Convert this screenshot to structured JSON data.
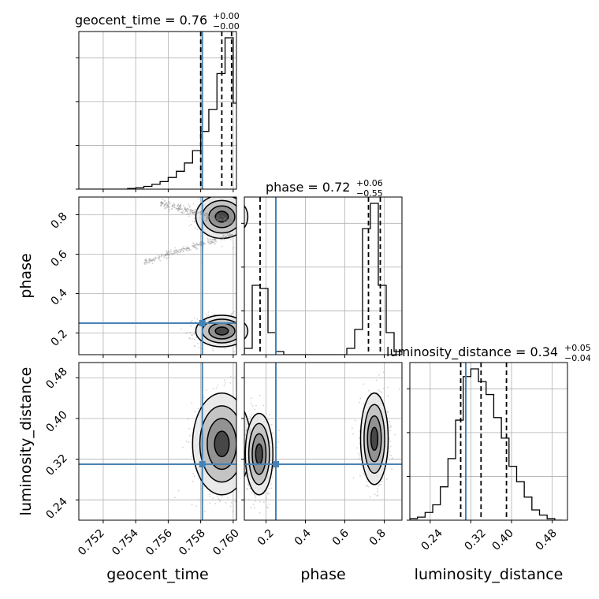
{
  "parameters": [
    "geocent_time",
    "phase",
    "luminosity_distance"
  ],
  "titles": [
    {
      "name": "geocent_time",
      "value": "0.76",
      "plus": "+0.00",
      "minus": "−0.00"
    },
    {
      "name": "phase",
      "value": "0.72",
      "plus": "+0.06",
      "minus": "−0.55"
    },
    {
      "name": "luminosity_distance",
      "value": "0.34",
      "plus": "+0.05",
      "minus": "−0.04"
    }
  ],
  "axis_labels": {
    "x": [
      "geocent_time",
      "phase",
      "luminosity_distance"
    ],
    "y": [
      "phase",
      "luminosity_distance"
    ]
  },
  "ticks": {
    "geocent_time": [
      "0.752",
      "0.754",
      "0.756",
      "0.758",
      "0.760"
    ],
    "phase_x": [
      "0.2",
      "0.4",
      "0.6",
      "0.8"
    ],
    "phase_y": [
      "0.2",
      "0.4",
      "0.6",
      "0.8"
    ],
    "luminosity_distance_x": [
      "0.24",
      "0.32",
      "0.40",
      "0.48"
    ],
    "luminosity_distance_y": [
      "0.24",
      "0.32",
      "0.40",
      "0.48"
    ]
  },
  "colors": {
    "truth": "#4682b4",
    "hist": "#000000",
    "grid": "#b0b0b0",
    "scatter": "#7f7f7f"
  },
  "chart_data": {
    "type": "corner",
    "grid": true,
    "ranges": {
      "geocent_time": [
        0.7505,
        0.7602
      ],
      "phase": [
        0.09,
        0.89
      ],
      "luminosity_distance": [
        0.2,
        0.51
      ]
    },
    "truths": {
      "geocent_time": 0.7581,
      "phase": 0.25,
      "luminosity_distance": 0.31
    },
    "quantiles": {
      "geocent_time": [
        0.758,
        0.7593,
        0.7599
      ],
      "phase": [
        0.17,
        0.72,
        0.78
      ],
      "luminosity_distance": [
        0.3,
        0.34,
        0.39
      ]
    },
    "hist_1d": {
      "geocent_time": {
        "edges": [
          0.7505,
          0.751,
          0.7515,
          0.752,
          0.7525,
          0.753,
          0.7535,
          0.754,
          0.7545,
          0.755,
          0.7555,
          0.756,
          0.7565,
          0.757,
          0.7575,
          0.758,
          0.7585,
          0.759,
          0.7595,
          0.76
        ],
        "counts": [
          0,
          0,
          0,
          0,
          0,
          0,
          0.1,
          0.2,
          0.4,
          0.7,
          1.1,
          1.7,
          2.6,
          3.8,
          5.6,
          8.4,
          11.6,
          16.8,
          22.0
        ],
        "last": 12.5
      },
      "phase": {
        "edges": [
          0.09,
          0.13,
          0.17,
          0.21,
          0.25,
          0.29,
          0.33,
          0.37,
          0.41,
          0.45,
          0.49,
          0.53,
          0.57,
          0.61,
          0.65,
          0.69,
          0.73,
          0.77,
          0.81,
          0.85,
          0.89
        ],
        "counts": [
          2,
          22,
          21,
          7,
          1,
          0,
          0,
          0,
          0,
          0,
          0,
          0,
          0,
          2,
          8,
          40,
          48,
          22,
          7,
          1
        ]
      },
      "luminosity_distance": {
        "edges": [
          0.2,
          0.215,
          0.23,
          0.245,
          0.26,
          0.275,
          0.29,
          0.305,
          0.32,
          0.335,
          0.35,
          0.365,
          0.38,
          0.395,
          0.41,
          0.425,
          0.44,
          0.455,
          0.47,
          0.485,
          0.5
        ],
        "counts": [
          0.3,
          0.6,
          1.5,
          3.0,
          6.5,
          12.0,
          19.5,
          28.0,
          29.5,
          27.0,
          24.5,
          20.0,
          16.0,
          10.5,
          7.5,
          4.5,
          2.0,
          1.0,
          0.3,
          0
        ]
      }
    },
    "clusters_2d": [
      {
        "x": "geocent_time",
        "y": "phase",
        "mean": [
          0.7593,
          0.79
        ],
        "sd": [
          0.0008,
          0.055
        ]
      },
      {
        "x": "geocent_time",
        "y": "phase",
        "mean": [
          0.7593,
          0.21
        ],
        "sd": [
          0.0008,
          0.04
        ]
      },
      {
        "x": "geocent_time",
        "y": "luminosity_distance",
        "mean": [
          0.7593,
          0.35
        ],
        "sd": [
          0.0009,
          0.05
        ]
      },
      {
        "x": "phase",
        "y": "luminosity_distance",
        "mean": [
          0.165,
          0.33
        ],
        "sd": [
          0.035,
          0.04
        ]
      },
      {
        "x": "phase",
        "y": "luminosity_distance",
        "mean": [
          0.75,
          0.36
        ],
        "sd": [
          0.035,
          0.045
        ]
      }
    ]
  }
}
